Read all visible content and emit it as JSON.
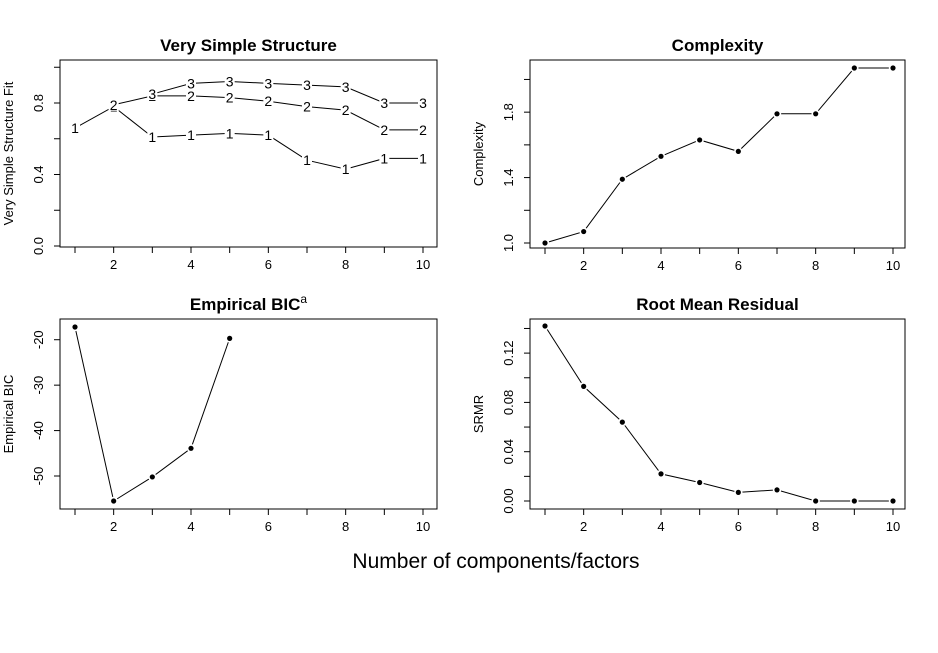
{
  "figure": {
    "xlabel": "Number of components/factors"
  },
  "chart_data": [
    {
      "type": "line",
      "title": "Very Simple Structure",
      "title_superscript": "",
      "ylabel": "Very Simple Structure Fit",
      "xlim": [
        1,
        10
      ],
      "ylim": [
        0,
        1
      ],
      "x_ticks": [
        2,
        4,
        6,
        8,
        10
      ],
      "y_ticks": [
        0.0,
        0.4,
        0.8
      ],
      "y_tick_labels": [
        "0.0",
        "0.4",
        "0.8"
      ],
      "y_minor_ticks": [
        0.2,
        0.6,
        1.0
      ],
      "marker": "label",
      "series": [
        {
          "label": "1",
          "x": [
            1,
            2,
            3,
            4,
            5,
            6,
            7,
            8,
            9,
            10
          ],
          "y": [
            0.66,
            0.78,
            0.61,
            0.62,
            0.63,
            0.62,
            0.48,
            0.43,
            0.49,
            0.49
          ]
        },
        {
          "label": "2",
          "x": [
            2,
            3,
            4,
            5,
            6,
            7,
            8,
            9,
            10
          ],
          "y": [
            0.79,
            0.84,
            0.84,
            0.83,
            0.81,
            0.78,
            0.76,
            0.65,
            0.65
          ]
        },
        {
          "label": "3",
          "x": [
            3,
            4,
            5,
            6,
            7,
            8,
            9,
            10
          ],
          "y": [
            0.85,
            0.91,
            0.92,
            0.91,
            0.9,
            0.89,
            0.8,
            0.8
          ]
        }
      ]
    },
    {
      "type": "line",
      "title": "Complexity",
      "title_superscript": "",
      "ylabel": "Complexity",
      "xlim": [
        1,
        10
      ],
      "ylim": [
        1.0,
        2.07
      ],
      "x_ticks": [
        2,
        4,
        6,
        8,
        10
      ],
      "y_ticks": [
        1.0,
        1.4,
        1.8
      ],
      "y_tick_labels": [
        "1.0",
        "1.4",
        "1.8"
      ],
      "y_minor_ticks": [
        1.2,
        1.6,
        2.0
      ],
      "marker": "dot",
      "series": [
        {
          "label": "",
          "x": [
            1,
            2,
            3,
            4,
            5,
            6,
            7,
            8,
            9,
            10
          ],
          "y": [
            1.0,
            1.07,
            1.39,
            1.53,
            1.63,
            1.56,
            1.79,
            1.79,
            2.07,
            2.07
          ]
        }
      ]
    },
    {
      "type": "line",
      "title": "Empirical BIC",
      "title_superscript": "a",
      "ylabel": "Empirical BIC",
      "xlim": [
        1,
        10
      ],
      "ylim": [
        -55.5,
        -17.2
      ],
      "x_ticks": [
        2,
        4,
        6,
        8,
        10
      ],
      "y_ticks": [
        -50,
        -40,
        -30,
        -20
      ],
      "y_tick_labels": [
        "-50",
        "-40",
        "-30",
        "-20"
      ],
      "y_minor_ticks": [],
      "marker": "dot",
      "series": [
        {
          "label": "",
          "x": [
            1,
            2,
            3,
            4,
            5
          ],
          "y": [
            -17.2,
            -55.5,
            -50.2,
            -43.9,
            -19.7
          ]
        }
      ]
    },
    {
      "type": "line",
      "title": "Root Mean Residual",
      "title_superscript": "",
      "ylabel": "SRMR",
      "xlim": [
        1,
        10
      ],
      "ylim": [
        0,
        0.142
      ],
      "x_ticks": [
        2,
        4,
        6,
        8,
        10
      ],
      "y_ticks": [
        0.0,
        0.04,
        0.08,
        0.12
      ],
      "y_tick_labels": [
        "0.00",
        "0.04",
        "0.08",
        "0.12"
      ],
      "y_minor_ticks": [
        0.02,
        0.06,
        0.1,
        0.14
      ],
      "marker": "dot",
      "series": [
        {
          "label": "",
          "x": [
            1,
            2,
            3,
            4,
            5,
            6,
            7,
            8,
            9,
            10
          ],
          "y": [
            0.142,
            0.093,
            0.064,
            0.022,
            0.015,
            0.007,
            0.009,
            0.0,
            0.0,
            0.0
          ]
        }
      ]
    }
  ]
}
